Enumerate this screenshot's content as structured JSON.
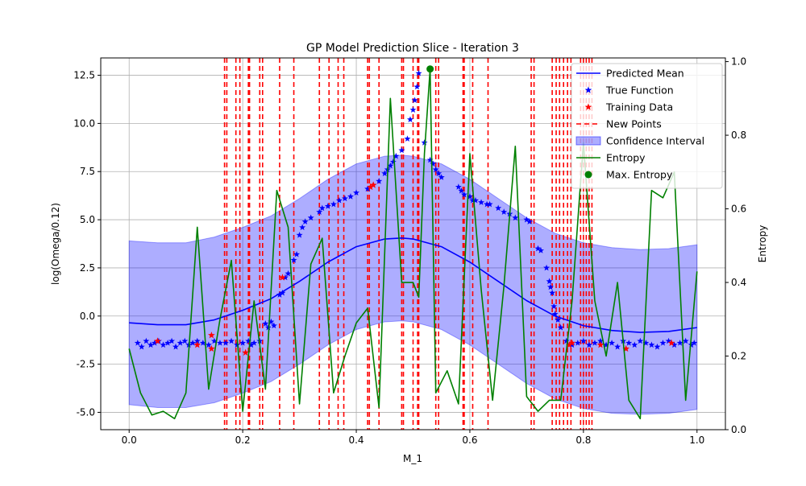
{
  "chart_data": {
    "type": "line",
    "title": "GP Model Prediction Slice - Iteration 3",
    "xlabel": "M_1",
    "ylabel": "log(Omega/0.12)",
    "y2label": "Entropy",
    "xlim": [
      -0.05,
      1.05
    ],
    "ylim": [
      -5.9,
      13.4
    ],
    "y2lim": [
      0.0,
      1.01
    ],
    "xticks": [
      "0.0",
      "0.2",
      "0.4",
      "0.6",
      "0.8",
      "1.0"
    ],
    "yticks": [
      "-5.0",
      "-2.5",
      "0.0",
      "2.5",
      "5.0",
      "7.5",
      "10.0",
      "12.5"
    ],
    "y2ticks": [
      "0.0",
      "0.2",
      "0.4",
      "0.6",
      "0.8",
      "1.0"
    ],
    "grid": true,
    "legend_position": "top-right",
    "colors": {
      "mean": "#0000ff",
      "true": "#0000ff",
      "training": "#ff0000",
      "new_points": "#ff0000",
      "confidence": "#0000ff",
      "entropy": "#008000",
      "max_entropy": "#008000"
    },
    "legend": [
      {
        "label": "Predicted Mean",
        "kind": "line",
        "color": "#0000ff"
      },
      {
        "label": "True Function",
        "kind": "star",
        "color": "#0000ff"
      },
      {
        "label": "Training Data",
        "kind": "star",
        "color": "#ff0000"
      },
      {
        "label": "New Points",
        "kind": "dashed",
        "color": "#ff0000"
      },
      {
        "label": "Confidence Interval",
        "kind": "patch",
        "color": "#0000ff"
      },
      {
        "label": "Entropy",
        "kind": "line",
        "color": "#008000"
      },
      {
        "label": "Max. Entropy",
        "kind": "dot",
        "color": "#008000"
      }
    ],
    "predicted_mean": {
      "x": [
        0.0,
        0.05,
        0.1,
        0.15,
        0.2,
        0.25,
        0.3,
        0.35,
        0.4,
        0.45,
        0.48,
        0.5,
        0.55,
        0.6,
        0.65,
        0.7,
        0.75,
        0.8,
        0.85,
        0.9,
        0.95,
        1.0
      ],
      "y": [
        -0.35,
        -0.45,
        -0.45,
        -0.2,
        0.3,
        0.9,
        1.8,
        2.8,
        3.6,
        4.0,
        4.05,
        4.0,
        3.6,
        2.8,
        1.8,
        0.8,
        0.0,
        -0.5,
        -0.75,
        -0.85,
        -0.8,
        -0.6
      ]
    },
    "confidence_interval": {
      "x": [
        0.0,
        0.05,
        0.1,
        0.15,
        0.2,
        0.25,
        0.3,
        0.35,
        0.4,
        0.45,
        0.48,
        0.5,
        0.55,
        0.6,
        0.65,
        0.7,
        0.75,
        0.8,
        0.85,
        0.9,
        0.95,
        1.0
      ],
      "lower": [
        -4.6,
        -4.75,
        -4.75,
        -4.5,
        -4.0,
        -3.4,
        -2.5,
        -1.5,
        -0.7,
        -0.3,
        -0.25,
        -0.3,
        -0.7,
        -1.5,
        -2.5,
        -3.5,
        -4.3,
        -4.8,
        -5.05,
        -5.1,
        -5.05,
        -4.85
      ],
      "upper": [
        3.9,
        3.8,
        3.8,
        4.1,
        4.6,
        5.2,
        6.1,
        7.1,
        7.9,
        8.3,
        8.35,
        8.3,
        7.9,
        7.1,
        6.1,
        5.1,
        4.3,
        3.8,
        3.55,
        3.45,
        3.5,
        3.7
      ]
    },
    "true_function": {
      "x": [
        0.015,
        0.022,
        0.03,
        0.038,
        0.045,
        0.052,
        0.06,
        0.068,
        0.075,
        0.082,
        0.09,
        0.098,
        0.105,
        0.112,
        0.12,
        0.13,
        0.14,
        0.15,
        0.16,
        0.17,
        0.18,
        0.19,
        0.2,
        0.21,
        0.215,
        0.22,
        0.23,
        0.24,
        0.245,
        0.25,
        0.255,
        0.265,
        0.27,
        0.275,
        0.28,
        0.29,
        0.295,
        0.3,
        0.305,
        0.31,
        0.32,
        0.335,
        0.34,
        0.35,
        0.36,
        0.37,
        0.38,
        0.39,
        0.4,
        0.42,
        0.43,
        0.44,
        0.45,
        0.455,
        0.46,
        0.465,
        0.47,
        0.48,
        0.49,
        0.495,
        0.5,
        0.503,
        0.507,
        0.51,
        0.52,
        0.53,
        0.535,
        0.54,
        0.545,
        0.55,
        0.58,
        0.585,
        0.59,
        0.6,
        0.605,
        0.61,
        0.62,
        0.63,
        0.635,
        0.65,
        0.66,
        0.67,
        0.68,
        0.7,
        0.705,
        0.72,
        0.725,
        0.735,
        0.74,
        0.742,
        0.745,
        0.748,
        0.75,
        0.755,
        0.76,
        0.77,
        0.78,
        0.79,
        0.8,
        0.81,
        0.82,
        0.83,
        0.84,
        0.85,
        0.86,
        0.87,
        0.88,
        0.89,
        0.9,
        0.91,
        0.92,
        0.93,
        0.94,
        0.95,
        0.96,
        0.97,
        0.98,
        0.99,
        0.995
      ],
      "y": [
        -1.4,
        -1.6,
        -1.3,
        -1.5,
        -1.4,
        -1.3,
        -1.5,
        -1.4,
        -1.3,
        -1.6,
        -1.4,
        -1.3,
        -1.5,
        -1.4,
        -1.3,
        -1.4,
        -1.5,
        -1.3,
        -1.4,
        -1.4,
        -1.3,
        -1.5,
        -1.4,
        -1.3,
        -1.5,
        -1.4,
        -1.3,
        -0.4,
        -0.6,
        -0.3,
        -0.5,
        1.1,
        1.2,
        2.0,
        2.2,
        2.9,
        3.2,
        4.2,
        4.6,
        4.9,
        5.1,
        5.4,
        5.6,
        5.7,
        5.8,
        6.0,
        6.1,
        6.2,
        6.4,
        6.6,
        6.8,
        7.0,
        7.4,
        7.6,
        7.8,
        8.0,
        8.3,
        8.6,
        9.2,
        10.2,
        10.7,
        11.2,
        11.9,
        12.6,
        9.0,
        8.1,
        7.9,
        7.6,
        7.4,
        7.2,
        6.7,
        6.5,
        6.3,
        6.2,
        6.0,
        6.0,
        5.9,
        5.8,
        5.8,
        5.6,
        5.4,
        5.3,
        5.1,
        5.0,
        4.9,
        3.5,
        3.4,
        2.5,
        1.8,
        1.5,
        1.2,
        0.5,
        0.1,
        -0.2,
        -0.6,
        -1.3,
        -1.5,
        -1.4,
        -1.3,
        -1.5,
        -1.4,
        -1.3,
        -1.5,
        -1.4,
        -1.6,
        -1.3,
        -1.4,
        -1.5,
        -1.3,
        -1.4,
        -1.5,
        -1.6,
        -1.4,
        -1.3,
        -1.5,
        -1.4,
        -1.3,
        -1.5,
        -1.4
      ]
    },
    "training_data": {
      "x": [
        0.05,
        0.12,
        0.145,
        0.145,
        0.205,
        0.27,
        0.425,
        0.43,
        0.775,
        0.78,
        0.83,
        0.875,
        0.955
      ],
      "y": [
        -1.3,
        -1.5,
        -1.0,
        -1.7,
        -1.9,
        2.0,
        6.7,
        6.8,
        -1.5,
        -1.4,
        -1.5,
        -1.7,
        -1.4
      ]
    },
    "new_points_x": [
      0.168,
      0.172,
      0.188,
      0.195,
      0.21,
      0.212,
      0.23,
      0.235,
      0.265,
      0.29,
      0.335,
      0.352,
      0.368,
      0.378,
      0.42,
      0.423,
      0.44,
      0.48,
      0.483,
      0.5,
      0.508,
      0.51,
      0.54,
      0.545,
      0.588,
      0.59,
      0.605,
      0.632,
      0.708,
      0.713,
      0.745,
      0.752,
      0.758,
      0.765,
      0.772,
      0.778,
      0.795,
      0.8,
      0.805,
      0.81,
      0.815
    ],
    "entropy": {
      "x": [
        0.0,
        0.02,
        0.04,
        0.06,
        0.08,
        0.1,
        0.12,
        0.14,
        0.16,
        0.18,
        0.2,
        0.22,
        0.24,
        0.26,
        0.28,
        0.3,
        0.32,
        0.34,
        0.36,
        0.38,
        0.4,
        0.42,
        0.44,
        0.46,
        0.48,
        0.5,
        0.51,
        0.52,
        0.53,
        0.54,
        0.56,
        0.58,
        0.6,
        0.62,
        0.64,
        0.66,
        0.68,
        0.7,
        0.72,
        0.74,
        0.76,
        0.78,
        0.8,
        0.82,
        0.84,
        0.86,
        0.88,
        0.9,
        0.92,
        0.94,
        0.96,
        0.98,
        1.0
      ],
      "y": [
        0.22,
        0.1,
        0.04,
        0.05,
        0.03,
        0.1,
        0.55,
        0.11,
        0.3,
        0.46,
        0.05,
        0.35,
        0.11,
        0.65,
        0.55,
        0.07,
        0.45,
        0.52,
        0.1,
        0.2,
        0.29,
        0.33,
        0.06,
        0.9,
        0.4,
        0.4,
        0.36,
        0.75,
        0.98,
        0.1,
        0.16,
        0.07,
        0.75,
        0.38,
        0.08,
        0.39,
        0.77,
        0.09,
        0.05,
        0.08,
        0.08,
        0.35,
        0.78,
        0.35,
        0.2,
        0.4,
        0.08,
        0.03,
        0.65,
        0.63,
        0.7,
        0.08,
        0.43
      ]
    },
    "max_entropy": {
      "x": 0.53,
      "y": 0.98
    }
  }
}
